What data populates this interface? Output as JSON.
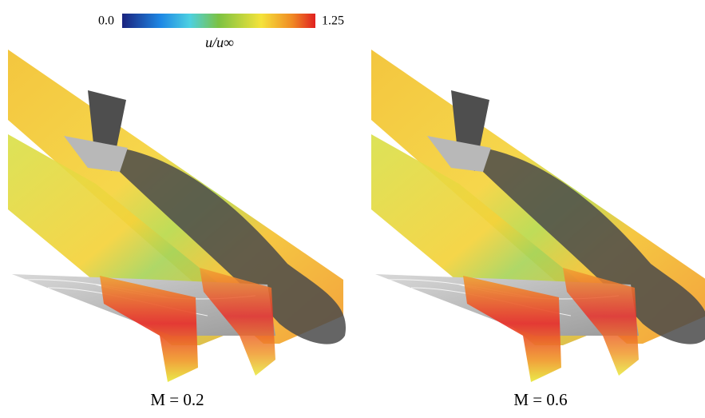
{
  "colorbar": {
    "min": {
      "value": 0,
      "label": "0.0"
    },
    "max": 1.25,
    "label": "u/u∞"
  },
  "panels": [
    {
      "caption": "M = 0.2"
    },
    {
      "caption": "M = 0.6"
    }
  ]
}
